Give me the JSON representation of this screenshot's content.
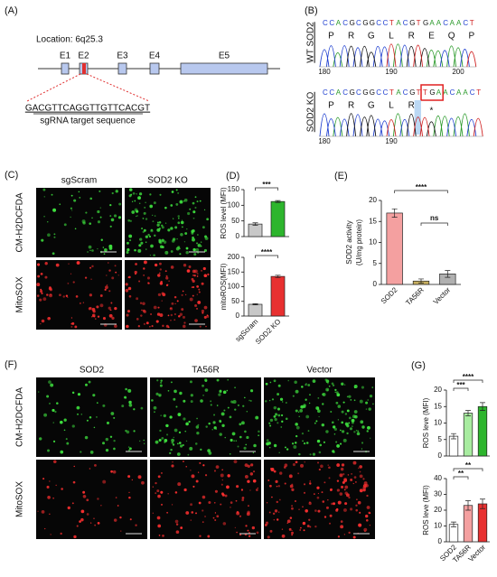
{
  "panel_a": {
    "label": "(A)",
    "location": "Location: 6q25.3",
    "exons": [
      "E1",
      "E2",
      "E3",
      "E4",
      "E5"
    ],
    "sgrna": "GACGTTCAGGTTGTTCACGT",
    "sgrna_caption": "sgRNA target sequence"
  },
  "panel_b": {
    "label": "(B)",
    "tracks": [
      {
        "name": "WT SOD2",
        "bases": "CCACGCGGCCTACGTGAACAACT",
        "residues": [
          "P",
          "R",
          "G",
          "L",
          "R",
          "E",
          "Q",
          "P"
        ],
        "positions": [
          180,
          190,
          200
        ]
      },
      {
        "name": "SOD2 KO",
        "bases": "CCACGCGGCCTACGTTGAACAACT",
        "residues": [
          "P",
          "R",
          "G",
          "L",
          "R",
          "*"
        ],
        "positions": [
          180,
          190
        ]
      }
    ]
  },
  "panel_c": {
    "label": "(C)",
    "columns": [
      "sgScram",
      "SOD2 KO"
    ],
    "rows": [
      "CM-H2DCFDA",
      "MitoSOX"
    ]
  },
  "panel_f": {
    "label": "(F)",
    "columns": [
      "SOD2",
      "TA56R",
      "Vector"
    ],
    "rows": [
      "CM-H2DCFDA",
      "MitoSOX"
    ]
  },
  "chart_data": [
    {
      "type": "bar",
      "label": "(D)",
      "ylabel": "ROS level (MFI)",
      "categories": [
        null,
        null
      ],
      "values": [
        40,
        112
      ],
      "errors": [
        4,
        3
      ],
      "colors": [
        "#c8c8c8",
        "#2db52d"
      ],
      "ylim": [
        0,
        150
      ],
      "yticks": [
        0,
        50,
        100,
        150
      ],
      "annotations": [
        "***"
      ]
    },
    {
      "type": "bar",
      "ylabel": "mitoROS(MFI)",
      "categories": [
        "sgScram",
        "SOD2 KO"
      ],
      "values": [
        40,
        135
      ],
      "errors": [
        2,
        4
      ],
      "colors": [
        "#c8c8c8",
        "#e83030"
      ],
      "ylim": [
        0,
        200
      ],
      "yticks": [
        0,
        50,
        100,
        150,
        200
      ],
      "annotations": [
        "****"
      ]
    },
    {
      "type": "bar",
      "label": "(E)",
      "ylabel": [
        "SOD2 activity",
        "(U/mg protein)"
      ],
      "categories": [
        "SOD2",
        "TA56R",
        "Vector"
      ],
      "values": [
        17,
        0.8,
        2.5
      ],
      "errors": [
        1,
        0.5,
        0.8
      ],
      "colors": [
        "#f4a0a0",
        "#c8b060",
        "#b0b0b0"
      ],
      "ylim": [
        0,
        20
      ],
      "yticks": [
        0,
        5,
        10,
        15,
        20
      ],
      "annotations": [
        "****",
        "ns"
      ]
    },
    {
      "type": "bar",
      "label": "(G)",
      "ylabel": "ROS leve (MFI)",
      "categories": [
        null,
        null,
        null
      ],
      "values": [
        6,
        13,
        15
      ],
      "errors": [
        0.8,
        0.8,
        1.2
      ],
      "colors": [
        "#ffffff",
        "#a8eca0",
        "#2db52d"
      ],
      "ylim": [
        0,
        20
      ],
      "yticks": [
        0,
        5,
        10,
        15,
        20
      ],
      "annotations": [
        "****",
        "***"
      ]
    },
    {
      "type": "bar",
      "ylabel": "ROS leve (MFI)",
      "categories": [
        "SOD2",
        "TA56R",
        "Vector"
      ],
      "values": [
        11,
        23,
        24
      ],
      "errors": [
        1.5,
        3,
        3
      ],
      "colors": [
        "#ffffff",
        "#f4a0a0",
        "#e83030"
      ],
      "ylim": [
        0,
        40
      ],
      "yticks": [
        0,
        10,
        20,
        30,
        40
      ],
      "annotations": [
        "**",
        "**"
      ]
    }
  ]
}
